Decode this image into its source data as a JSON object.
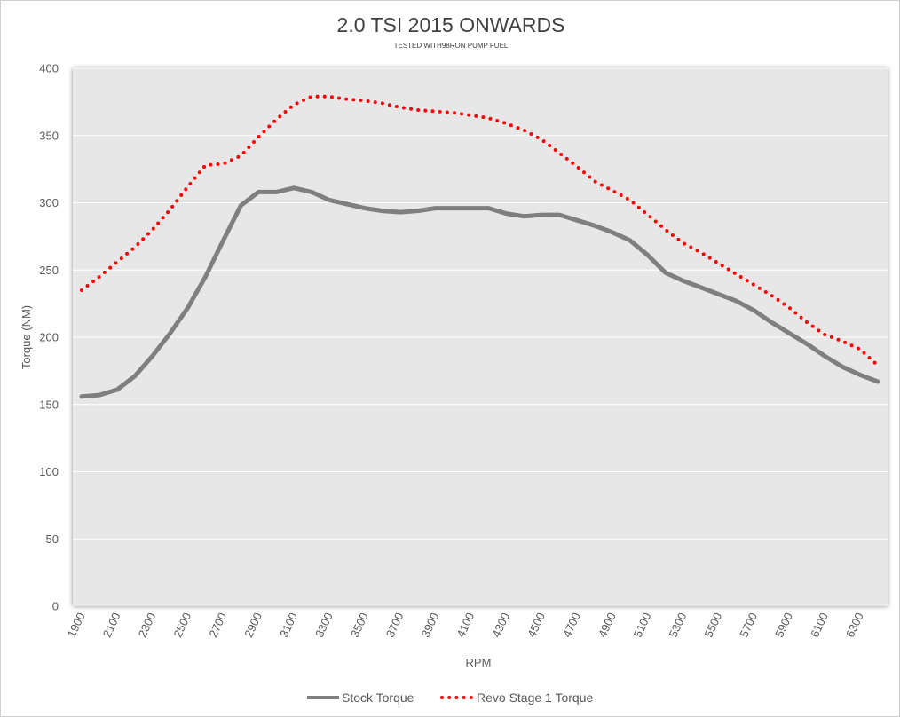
{
  "chart_data": {
    "type": "line",
    "title": "2.0 TSI 2015 ONWARDS",
    "subtitle": "TESTED WITH98RON PUMP FUEL",
    "xlabel": "RPM",
    "ylabel": "Torque (NM)",
    "ylim": [
      0,
      400
    ],
    "yticks": [
      0,
      50,
      100,
      150,
      200,
      250,
      300,
      350,
      400
    ],
    "xtick_labels": [
      "1900",
      "2100",
      "2300",
      "2500",
      "2700",
      "2900",
      "3100",
      "3300",
      "3500",
      "3700",
      "3900",
      "4100",
      "4300",
      "4500",
      "4700",
      "4900",
      "5100",
      "5300",
      "5500",
      "5700",
      "5900",
      "6100",
      "6300"
    ],
    "x": [
      1900,
      2000,
      2100,
      2200,
      2300,
      2400,
      2500,
      2600,
      2700,
      2800,
      2900,
      3000,
      3100,
      3200,
      3300,
      3400,
      3500,
      3600,
      3700,
      3800,
      3900,
      4000,
      4100,
      4200,
      4300,
      4400,
      4500,
      4600,
      4700,
      4800,
      4900,
      5000,
      5100,
      5200,
      5300,
      5400,
      5500,
      5600,
      5700,
      5800,
      5900,
      6000,
      6100,
      6200,
      6300,
      6400
    ],
    "grid": true,
    "legend_position": "bottom",
    "series": [
      {
        "name": "Stock Torque",
        "color": "#7f7f7f",
        "style": "solid",
        "values": [
          156,
          157,
          161,
          171,
          186,
          203,
          222,
          245,
          272,
          298,
          308,
          308,
          311,
          308,
          302,
          299,
          296,
          294,
          293,
          294,
          296,
          296,
          296,
          296,
          292,
          290,
          291,
          291,
          287,
          283,
          278,
          272,
          261,
          248,
          242,
          237,
          232,
          227,
          220,
          211,
          203,
          195,
          186,
          178,
          172,
          167
        ]
      },
      {
        "name": "Revo Stage 1 Torque",
        "color": "#ff0000",
        "style": "dotted",
        "values": [
          235,
          245,
          256,
          267,
          280,
          295,
          312,
          328,
          329,
          335,
          349,
          362,
          373,
          379,
          379,
          377,
          376,
          374,
          371,
          369,
          368,
          367,
          365,
          363,
          359,
          354,
          347,
          337,
          327,
          316,
          309,
          302,
          291,
          280,
          270,
          263,
          255,
          247,
          239,
          231,
          222,
          211,
          202,
          197,
          191,
          179
        ]
      }
    ]
  }
}
